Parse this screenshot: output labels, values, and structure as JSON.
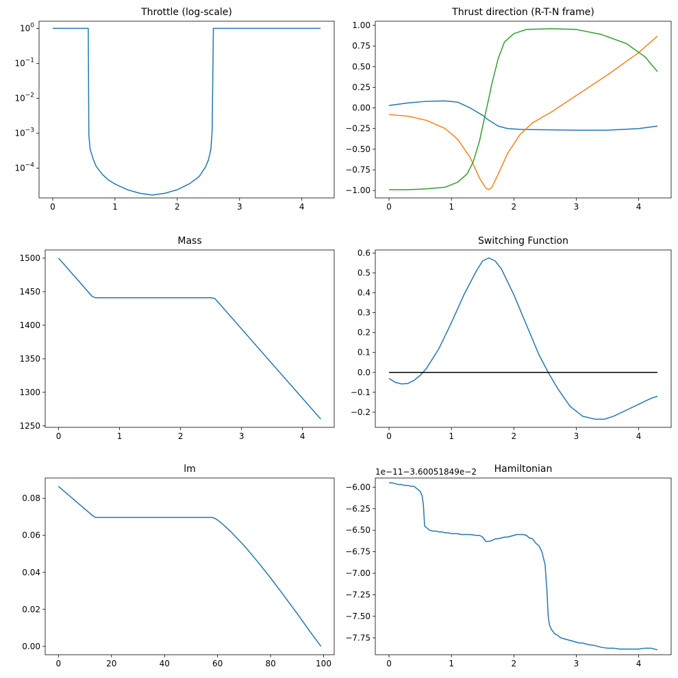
{
  "colors": {
    "c0": "#1f77b4",
    "c1": "#ff7f0e",
    "c2": "#2ca02c",
    "black": "#000000"
  },
  "chart_data": [
    {
      "id": "throttle",
      "type": "line",
      "title": "Throttle (log-scale)",
      "yscale": "log",
      "xlim": [
        -0.22,
        4.52
      ],
      "ylim": [
        1.4e-05,
        1.6
      ],
      "xticks": [
        {
          "v": 0,
          "label": "0"
        },
        {
          "v": 1,
          "label": "1"
        },
        {
          "v": 2,
          "label": "2"
        },
        {
          "v": 3,
          "label": "3"
        },
        {
          "v": 4,
          "label": "4"
        }
      ],
      "yticks": [
        {
          "v": 1,
          "label": "10",
          "exp": "0"
        },
        {
          "v": 0.1,
          "label": "10",
          "exp": "−1"
        },
        {
          "v": 0.01,
          "label": "10",
          "exp": "−2"
        },
        {
          "v": 0.001,
          "label": "10",
          "exp": "−3"
        },
        {
          "v": 0.0001,
          "label": "10",
          "exp": "−4"
        }
      ],
      "series": [
        {
          "name": "throttle",
          "color": "c0",
          "x": [
            0,
            0.57,
            0.58,
            0.6,
            0.65,
            0.7,
            0.8,
            0.9,
            1.0,
            1.2,
            1.4,
            1.6,
            1.8,
            2.0,
            2.2,
            2.35,
            2.45,
            2.5,
            2.54,
            2.56,
            2.58,
            4.3
          ],
          "y": [
            1,
            1,
            0.0009,
            0.00035,
            0.00018,
            0.00011,
            6.5e-05,
            4.5e-05,
            3.5e-05,
            2.4e-05,
            1.9e-05,
            1.7e-05,
            1.9e-05,
            2.4e-05,
            3.6e-05,
            5.7e-05,
            0.000105,
            0.00017,
            0.00035,
            0.0012,
            1,
            1
          ]
        }
      ]
    },
    {
      "id": "thrust-direction",
      "type": "line",
      "title": "Thrust direction (R-T-N frame)",
      "yscale": "linear",
      "xlim": [
        -0.22,
        4.52
      ],
      "ylim": [
        -1.09,
        1.05
      ],
      "xticks": [
        {
          "v": 0,
          "label": "0"
        },
        {
          "v": 1,
          "label": "1"
        },
        {
          "v": 2,
          "label": "2"
        },
        {
          "v": 3,
          "label": "3"
        },
        {
          "v": 4,
          "label": "4"
        }
      ],
      "yticks": [
        {
          "v": 1,
          "label": "1.00"
        },
        {
          "v": 0.75,
          "label": "0.75"
        },
        {
          "v": 0.5,
          "label": "0.50"
        },
        {
          "v": 0.25,
          "label": "0.25"
        },
        {
          "v": 0,
          "label": "0.00"
        },
        {
          "v": -0.25,
          "label": "−0.25"
        },
        {
          "v": -0.5,
          "label": "−0.50"
        },
        {
          "v": -0.75,
          "label": "−0.75"
        },
        {
          "v": -1,
          "label": "−1.00"
        }
      ],
      "series": [
        {
          "name": "R",
          "color": "c0",
          "x": [
            0,
            0.3,
            0.6,
            0.9,
            1.1,
            1.3,
            1.5,
            1.6,
            1.75,
            1.9,
            2.1,
            2.5,
            3.0,
            3.5,
            4.0,
            4.3
          ],
          "y": [
            0.03,
            0.06,
            0.08,
            0.085,
            0.07,
            0.0,
            -0.09,
            -0.15,
            -0.22,
            -0.25,
            -0.26,
            -0.265,
            -0.27,
            -0.27,
            -0.25,
            -0.22
          ]
        },
        {
          "name": "T",
          "color": "c1",
          "x": [
            0,
            0.3,
            0.6,
            0.9,
            1.1,
            1.3,
            1.45,
            1.55,
            1.6,
            1.65,
            1.75,
            1.9,
            2.1,
            2.3,
            2.6,
            3.0,
            3.5,
            4.0,
            4.3
          ],
          "y": [
            -0.08,
            -0.1,
            -0.15,
            -0.25,
            -0.38,
            -0.6,
            -0.85,
            -0.97,
            -0.99,
            -0.96,
            -0.8,
            -0.55,
            -0.32,
            -0.18,
            -0.05,
            0.15,
            0.4,
            0.67,
            0.87
          ]
        },
        {
          "name": "N",
          "color": "c2",
          "x": [
            0,
            0.3,
            0.6,
            0.9,
            1.1,
            1.25,
            1.35,
            1.45,
            1.55,
            1.6,
            1.65,
            1.75,
            1.85,
            2.0,
            2.2,
            2.6,
            3.0,
            3.4,
            3.8,
            4.1,
            4.3
          ],
          "y": [
            -0.99,
            -0.99,
            -0.98,
            -0.96,
            -0.9,
            -0.8,
            -0.65,
            -0.4,
            -0.05,
            0.12,
            0.3,
            0.6,
            0.8,
            0.9,
            0.95,
            0.96,
            0.95,
            0.89,
            0.78,
            0.62,
            0.44
          ]
        }
      ]
    },
    {
      "id": "mass",
      "type": "line",
      "title": "Mass",
      "yscale": "linear",
      "xlim": [
        -0.22,
        4.52
      ],
      "ylim": [
        1247.8,
        1512.2
      ],
      "xticks": [
        {
          "v": 0,
          "label": "0"
        },
        {
          "v": 1,
          "label": "1"
        },
        {
          "v": 2,
          "label": "2"
        },
        {
          "v": 3,
          "label": "3"
        },
        {
          "v": 4,
          "label": "4"
        }
      ],
      "yticks": [
        {
          "v": 1500,
          "label": "1500"
        },
        {
          "v": 1450,
          "label": "1450"
        },
        {
          "v": 1400,
          "label": "1400"
        },
        {
          "v": 1350,
          "label": "1350"
        },
        {
          "v": 1300,
          "label": "1300"
        },
        {
          "v": 1250,
          "label": "1250"
        }
      ],
      "series": [
        {
          "name": "mass",
          "color": "c0",
          "x": [
            0,
            0.55,
            0.6,
            2.5,
            2.56,
            2.6,
            4.3
          ],
          "y": [
            1500,
            1443,
            1441,
            1441,
            1440,
            1436,
            1260
          ]
        }
      ]
    },
    {
      "id": "switching-function",
      "type": "line",
      "title": "Switching Function",
      "yscale": "linear",
      "xlim": [
        -0.22,
        4.52
      ],
      "ylim": [
        -0.276,
        0.615
      ],
      "xticks": [
        {
          "v": 0,
          "label": "0"
        },
        {
          "v": 1,
          "label": "1"
        },
        {
          "v": 2,
          "label": "2"
        },
        {
          "v": 3,
          "label": "3"
        },
        {
          "v": 4,
          "label": "4"
        }
      ],
      "yticks": [
        {
          "v": 0.6,
          "label": "0.6"
        },
        {
          "v": 0.5,
          "label": "0.5"
        },
        {
          "v": 0.4,
          "label": "0.4"
        },
        {
          "v": 0.3,
          "label": "0.3"
        },
        {
          "v": 0.2,
          "label": "0.2"
        },
        {
          "v": 0.1,
          "label": "0.1"
        },
        {
          "v": 0,
          "label": "0.0"
        },
        {
          "v": -0.1,
          "label": "−0.1"
        },
        {
          "v": -0.2,
          "label": "−0.2"
        }
      ],
      "series": [
        {
          "name": "switching",
          "color": "c0",
          "x": [
            0,
            0.1,
            0.2,
            0.3,
            0.4,
            0.5,
            0.6,
            0.8,
            1.0,
            1.2,
            1.4,
            1.5,
            1.6,
            1.7,
            1.8,
            2.0,
            2.2,
            2.4,
            2.55,
            2.7,
            2.9,
            3.1,
            3.3,
            3.45,
            3.6,
            3.8,
            4.0,
            4.2,
            4.3
          ],
          "y": [
            -0.03,
            -0.05,
            -0.058,
            -0.056,
            -0.04,
            -0.015,
            0.02,
            0.12,
            0.25,
            0.39,
            0.51,
            0.56,
            0.575,
            0.56,
            0.52,
            0.39,
            0.24,
            0.09,
            0.0,
            -0.08,
            -0.17,
            -0.22,
            -0.235,
            -0.235,
            -0.22,
            -0.19,
            -0.16,
            -0.13,
            -0.12
          ]
        },
        {
          "name": "zero",
          "color": "black",
          "x": [
            0,
            4.3
          ],
          "y": [
            0,
            0
          ]
        }
      ]
    },
    {
      "id": "lm",
      "type": "line",
      "title": "lm",
      "yscale": "linear",
      "xlim": [
        -5,
        104
      ],
      "ylim": [
        -0.0045,
        0.091
      ],
      "xticks": [
        {
          "v": 0,
          "label": "0"
        },
        {
          "v": 20,
          "label": "20"
        },
        {
          "v": 40,
          "label": "40"
        },
        {
          "v": 60,
          "label": "60"
        },
        {
          "v": 80,
          "label": "80"
        },
        {
          "v": 100,
          "label": "100"
        }
      ],
      "yticks": [
        {
          "v": 0.08,
          "label": "0.08"
        },
        {
          "v": 0.06,
          "label": "0.06"
        },
        {
          "v": 0.04,
          "label": "0.04"
        },
        {
          "v": 0.02,
          "label": "0.02"
        },
        {
          "v": 0,
          "label": "0.00"
        }
      ],
      "series": [
        {
          "name": "lm",
          "color": "c0",
          "x": [
            0,
            13,
            14,
            58,
            59,
            60,
            62,
            65,
            70,
            75,
            80,
            85,
            90,
            95,
            99
          ],
          "y": [
            0.0865,
            0.0705,
            0.0697,
            0.0697,
            0.0692,
            0.0683,
            0.066,
            0.062,
            0.0545,
            0.046,
            0.037,
            0.0275,
            0.0178,
            0.0078,
            0.0
          ]
        }
      ]
    },
    {
      "id": "hamiltonian",
      "type": "line",
      "title": "Hamiltonian",
      "offset_text": "1e−11−3.60051849e−2",
      "yscale": "linear",
      "xlim": [
        -0.22,
        4.52
      ],
      "ylim": [
        -7.946,
        -5.894
      ],
      "xticks": [
        {
          "v": 0,
          "label": "0"
        },
        {
          "v": 1,
          "label": "1"
        },
        {
          "v": 2,
          "label": "2"
        },
        {
          "v": 3,
          "label": "3"
        },
        {
          "v": 4,
          "label": "4"
        }
      ],
      "yticks": [
        {
          "v": -6.0,
          "label": "−6.00"
        },
        {
          "v": -6.25,
          "label": "−6.25"
        },
        {
          "v": -6.5,
          "label": "−6.50"
        },
        {
          "v": -6.75,
          "label": "−6.75"
        },
        {
          "v": -7.0,
          "label": "−7.00"
        },
        {
          "v": -7.25,
          "label": "−7.25"
        },
        {
          "v": -7.5,
          "label": "−7.50"
        },
        {
          "v": -7.75,
          "label": "−7.75"
        }
      ],
      "series": [
        {
          "name": "hamiltonian",
          "color": "c0",
          "x": [
            0,
            0.05,
            0.1,
            0.15,
            0.2,
            0.25,
            0.3,
            0.35,
            0.4,
            0.45,
            0.5,
            0.53,
            0.55,
            0.57,
            0.6,
            0.65,
            0.7,
            0.75,
            0.8,
            0.85,
            0.9,
            0.95,
            1.0,
            1.05,
            1.1,
            1.15,
            1.2,
            1.3,
            1.4,
            1.45,
            1.5,
            1.55,
            1.6,
            1.65,
            1.7,
            1.75,
            1.8,
            1.85,
            1.9,
            2.0,
            2.05,
            2.1,
            2.15,
            2.2,
            2.25,
            2.3,
            2.35,
            2.4,
            2.45,
            2.5,
            2.53,
            2.55,
            2.57,
            2.6,
            2.65,
            2.7,
            2.75,
            2.8,
            2.85,
            2.9,
            2.95,
            3.0,
            3.05,
            3.1,
            3.15,
            3.2,
            3.3,
            3.35,
            3.4,
            3.5,
            3.6,
            3.7,
            3.8,
            3.9,
            4.0,
            4.1,
            4.2,
            4.3
          ],
          "y": [
            -5.95,
            -5.95,
            -5.96,
            -5.97,
            -5.97,
            -5.98,
            -5.98,
            -5.99,
            -5.99,
            -6.02,
            -6.05,
            -6.1,
            -6.2,
            -6.45,
            -6.47,
            -6.5,
            -6.51,
            -6.51,
            -6.52,
            -6.52,
            -6.53,
            -6.53,
            -6.54,
            -6.54,
            -6.54,
            -6.55,
            -6.55,
            -6.55,
            -6.56,
            -6.56,
            -6.58,
            -6.63,
            -6.63,
            -6.62,
            -6.6,
            -6.6,
            -6.59,
            -6.58,
            -6.58,
            -6.56,
            -6.55,
            -6.55,
            -6.55,
            -6.56,
            -6.59,
            -6.6,
            -6.65,
            -6.68,
            -6.75,
            -6.9,
            -7.2,
            -7.5,
            -7.6,
            -7.65,
            -7.7,
            -7.72,
            -7.75,
            -7.76,
            -7.77,
            -7.78,
            -7.79,
            -7.8,
            -7.81,
            -7.81,
            -7.82,
            -7.83,
            -7.84,
            -7.85,
            -7.86,
            -7.87,
            -7.87,
            -7.88,
            -7.88,
            -7.88,
            -7.88,
            -7.87,
            -7.87,
            -7.89
          ]
        }
      ]
    }
  ]
}
